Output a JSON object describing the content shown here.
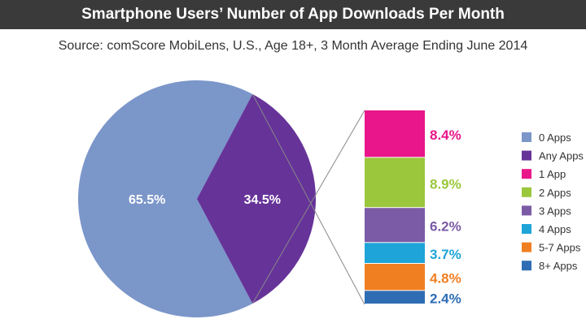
{
  "chart_data": {
    "type": "pie",
    "title": "Smartphone Users’ Number of App Downloads Per Month",
    "subtitle": "Source: comScore MobiLens, U.S., Age 18+, 3 Month Average Ending June 2014",
    "pie": {
      "slices": [
        {
          "label": "0 Apps",
          "value": 65.5,
          "display": "65.5%",
          "color": "#7b96c9"
        },
        {
          "label": "Any Apps",
          "value": 34.5,
          "display": "34.5%",
          "color": "#663399"
        }
      ]
    },
    "breakdown": {
      "of": "Any Apps",
      "segments": [
        {
          "label": "1 App",
          "value": 8.4,
          "display": "8.4%",
          "color": "#e8168a"
        },
        {
          "label": "2 Apps",
          "value": 8.9,
          "display": "8.9%",
          "color": "#9ac73c"
        },
        {
          "label": "3 Apps",
          "value": 6.2,
          "display": "6.2%",
          "color": "#7b5ba6"
        },
        {
          "label": "4 Apps",
          "value": 3.7,
          "display": "3.7%",
          "color": "#1ea4d8"
        },
        {
          "label": "5-7 Apps",
          "value": 4.8,
          "display": "4.8%",
          "color": "#f07f22"
        },
        {
          "label": "8+ Apps",
          "value": 2.4,
          "display": "2.4%",
          "color": "#2e6db4"
        }
      ]
    },
    "legend": {
      "placement": "right",
      "items": [
        {
          "label": "0 Apps",
          "color": "#7b96c9"
        },
        {
          "label": "Any Apps",
          "color": "#663399"
        },
        {
          "label": "1 App",
          "color": "#e8168a"
        },
        {
          "label": "2 Apps",
          "color": "#9ac73c"
        },
        {
          "label": "3 Apps",
          "color": "#7b5ba6"
        },
        {
          "label": "4 Apps",
          "color": "#1ea4d8"
        },
        {
          "label": "5-7 Apps",
          "color": "#f07f22"
        },
        {
          "label": "8+ Apps",
          "color": "#2e6db4"
        }
      ]
    }
  }
}
